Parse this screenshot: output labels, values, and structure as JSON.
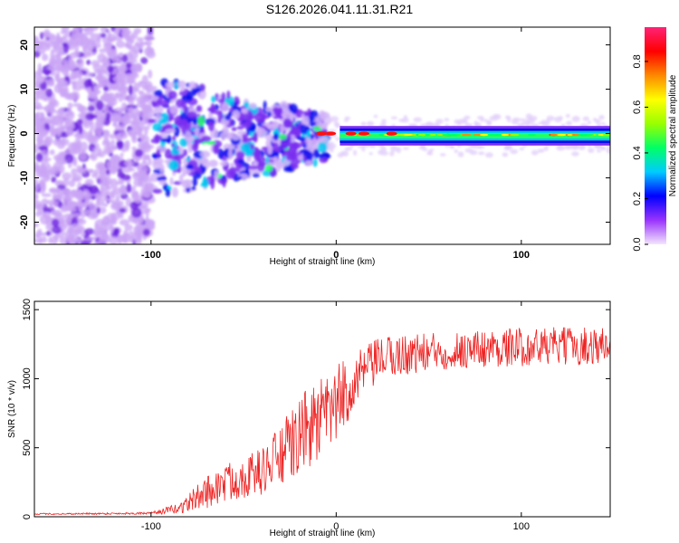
{
  "title": "S126.2026.041.11.31.R21",
  "chart_data": [
    {
      "type": "heatmap",
      "name": "spectrogram",
      "xlabel": "Height of straight line (km)",
      "ylabel": "Frequency (Hz)",
      "xlim": [
        -163,
        148
      ],
      "ylim": [
        -25,
        24
      ],
      "xticks": [
        "-100",
        "0",
        "100"
      ],
      "xtick_values": [
        -100,
        0,
        100
      ],
      "yticks": [
        "-20",
        "-10",
        "0",
        "10",
        "20"
      ],
      "ytick_values": [
        -20,
        -10,
        0,
        10,
        20
      ],
      "colorbar": {
        "label": "Normalized spectral amplitude",
        "range": [
          0,
          0.95
        ],
        "ticks": [
          "0.0",
          "0.2",
          "0.4",
          "0.6",
          "0.8"
        ],
        "tick_values": [
          0.0,
          0.2,
          0.4,
          0.6,
          0.8
        ],
        "colors": [
          "#f3e6ff",
          "#9933ff",
          "#0000ff",
          "#00ccff",
          "#00ff66",
          "#99ff00",
          "#ffff00",
          "#ff8800",
          "#ff0000",
          "#ff2277"
        ]
      },
      "features": {
        "noise_region_x": [
          -163,
          -100
        ],
        "transition_region_x": [
          -100,
          -5
        ],
        "stable_tone_x": [
          10,
          148
        ],
        "stable_tone_frequency": -0.5,
        "peak_amplitude_points": [
          [
            -8,
            0
          ],
          [
            -3,
            0
          ],
          [
            8,
            0
          ],
          [
            15,
            0
          ],
          [
            30,
            0
          ]
        ]
      }
    },
    {
      "type": "line",
      "name": "snr",
      "xlabel": "Height of straight line (km)",
      "ylabel": "SNR (10 * v/v)",
      "xlim": [
        -163,
        148
      ],
      "ylim": [
        0,
        1560
      ],
      "xticks": [
        "-100",
        "0",
        "100"
      ],
      "xtick_values": [
        -100,
        0,
        100
      ],
      "yticks": [
        "0",
        "500",
        "1000",
        "1500"
      ],
      "ytick_values": [
        0,
        500,
        1000,
        1500
      ],
      "series": [
        {
          "name": "SNR",
          "color": "#ee2222",
          "trend_x": [
            -163,
            -100,
            -85,
            -70,
            -55,
            -40,
            -25,
            -15,
            -5,
            5,
            15,
            25,
            40,
            60,
            80,
            100,
            120,
            148
          ],
          "trend_y": [
            20,
            25,
            60,
            180,
            270,
            330,
            500,
            650,
            720,
            900,
            1050,
            1150,
            1180,
            1200,
            1220,
            1230,
            1235,
            1240
          ],
          "noise_amplitude": [
            5,
            8,
            40,
            120,
            150,
            170,
            260,
            300,
            310,
            250,
            180,
            160,
            150,
            140,
            140,
            140,
            140,
            140
          ],
          "samples": 900
        }
      ]
    }
  ]
}
